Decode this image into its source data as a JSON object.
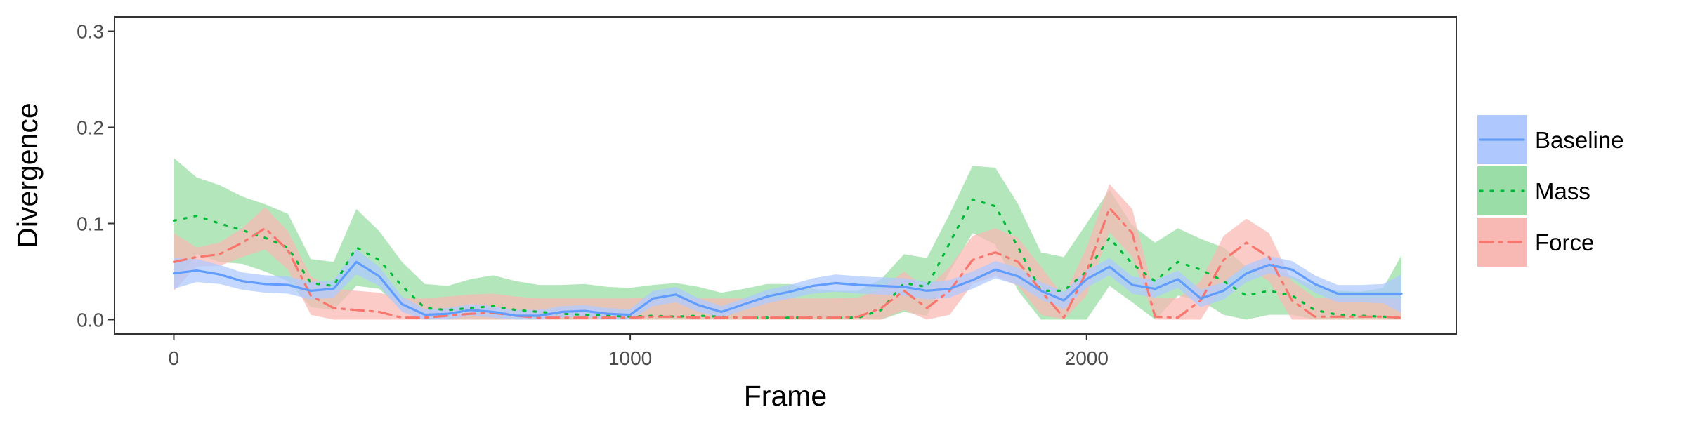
{
  "chart_data": {
    "type": "line",
    "xlabel": "Frame",
    "ylabel": "Divergence",
    "xlim": [
      -130,
      2810
    ],
    "ylim": [
      -0.015,
      0.315
    ],
    "x_ticks": [
      0,
      1000,
      2000
    ],
    "x_tick_labels": [
      "0",
      "1000",
      "2000"
    ],
    "y_ticks": [
      0.0,
      0.1,
      0.2,
      0.3
    ],
    "y_tick_labels": [
      "0.0",
      "0.1",
      "0.2",
      "0.3"
    ],
    "grid": false,
    "legend_position": "right",
    "series": [
      {
        "name": "Baseline",
        "color": "#619CFF",
        "band_color": "#AFC9FF",
        "dash": "",
        "points": [
          [
            0,
            0.048
          ],
          [
            50,
            0.051
          ],
          [
            100,
            0.047
          ],
          [
            150,
            0.04
          ],
          [
            200,
            0.037
          ],
          [
            250,
            0.036
          ],
          [
            300,
            0.03
          ],
          [
            350,
            0.032
          ],
          [
            400,
            0.06
          ],
          [
            450,
            0.045
          ],
          [
            500,
            0.016
          ],
          [
            550,
            0.005
          ],
          [
            600,
            0.006
          ],
          [
            650,
            0.01
          ],
          [
            700,
            0.008
          ],
          [
            750,
            0.004
          ],
          [
            800,
            0.004
          ],
          [
            850,
            0.008
          ],
          [
            900,
            0.009
          ],
          [
            950,
            0.006
          ],
          [
            1000,
            0.005
          ],
          [
            1050,
            0.022
          ],
          [
            1100,
            0.026
          ],
          [
            1150,
            0.015
          ],
          [
            1200,
            0.008
          ],
          [
            1250,
            0.016
          ],
          [
            1300,
            0.024
          ],
          [
            1350,
            0.029
          ],
          [
            1400,
            0.035
          ],
          [
            1450,
            0.038
          ],
          [
            1500,
            0.036
          ],
          [
            1550,
            0.035
          ],
          [
            1600,
            0.034
          ],
          [
            1650,
            0.03
          ],
          [
            1700,
            0.032
          ],
          [
            1750,
            0.041
          ],
          [
            1800,
            0.052
          ],
          [
            1850,
            0.045
          ],
          [
            1900,
            0.03
          ],
          [
            1950,
            0.02
          ],
          [
            2000,
            0.042
          ],
          [
            2050,
            0.055
          ],
          [
            2100,
            0.036
          ],
          [
            2150,
            0.032
          ],
          [
            2200,
            0.042
          ],
          [
            2250,
            0.022
          ],
          [
            2300,
            0.03
          ],
          [
            2350,
            0.048
          ],
          [
            2400,
            0.057
          ],
          [
            2450,
            0.052
          ],
          [
            2500,
            0.037
          ],
          [
            2550,
            0.027
          ],
          [
            2600,
            0.027
          ],
          [
            2650,
            0.027
          ],
          [
            2690,
            0.027
          ]
        ],
        "band_half": [
          0.016,
          0.012,
          0.01,
          0.009,
          0.009,
          0.009,
          0.009,
          0.009,
          0.013,
          0.01,
          0.008,
          0.006,
          0.006,
          0.006,
          0.006,
          0.006,
          0.006,
          0.006,
          0.006,
          0.006,
          0.006,
          0.008,
          0.008,
          0.007,
          0.006,
          0.006,
          0.007,
          0.007,
          0.008,
          0.009,
          0.009,
          0.009,
          0.009,
          0.009,
          0.009,
          0.009,
          0.009,
          0.009,
          0.009,
          0.009,
          0.009,
          0.009,
          0.009,
          0.009,
          0.009,
          0.009,
          0.009,
          0.009,
          0.009,
          0.009,
          0.009,
          0.009,
          0.009,
          0.01,
          0.02
        ]
      },
      {
        "name": "Mass",
        "color": "#00BA38",
        "band_color": "#9BDDA6",
        "dash": "3 12",
        "points": [
          [
            0,
            0.103
          ],
          [
            50,
            0.108
          ],
          [
            100,
            0.1
          ],
          [
            150,
            0.093
          ],
          [
            200,
            0.085
          ],
          [
            250,
            0.075
          ],
          [
            300,
            0.038
          ],
          [
            350,
            0.035
          ],
          [
            400,
            0.075
          ],
          [
            450,
            0.062
          ],
          [
            500,
            0.035
          ],
          [
            550,
            0.012
          ],
          [
            600,
            0.01
          ],
          [
            650,
            0.012
          ],
          [
            700,
            0.014
          ],
          [
            750,
            0.01
          ],
          [
            800,
            0.008
          ],
          [
            850,
            0.006
          ],
          [
            900,
            0.005
          ],
          [
            950,
            0.004
          ],
          [
            1000,
            0.003
          ],
          [
            1050,
            0.004
          ],
          [
            1100,
            0.003
          ],
          [
            1150,
            0.004
          ],
          [
            1200,
            0.003
          ],
          [
            1250,
            0.002
          ],
          [
            1300,
            0.002
          ],
          [
            1350,
            0.002
          ],
          [
            1400,
            0.002
          ],
          [
            1450,
            0.002
          ],
          [
            1500,
            0.002
          ],
          [
            1550,
            0.01
          ],
          [
            1600,
            0.038
          ],
          [
            1650,
            0.034
          ],
          [
            1700,
            0.08
          ],
          [
            1750,
            0.125
          ],
          [
            1800,
            0.118
          ],
          [
            1850,
            0.075
          ],
          [
            1900,
            0.03
          ],
          [
            1950,
            0.03
          ],
          [
            2000,
            0.05
          ],
          [
            2050,
            0.085
          ],
          [
            2100,
            0.058
          ],
          [
            2150,
            0.04
          ],
          [
            2200,
            0.06
          ],
          [
            2250,
            0.052
          ],
          [
            2300,
            0.04
          ],
          [
            2350,
            0.025
          ],
          [
            2400,
            0.03
          ],
          [
            2450,
            0.025
          ],
          [
            2500,
            0.01
          ],
          [
            2550,
            0.005
          ],
          [
            2600,
            0.004
          ],
          [
            2650,
            0.003
          ],
          [
            2690,
            0.002
          ]
        ],
        "band_half": [
          0.065,
          0.04,
          0.04,
          0.035,
          0.035,
          0.035,
          0.025,
          0.025,
          0.04,
          0.03,
          0.025,
          0.025,
          0.025,
          0.03,
          0.032,
          0.03,
          0.028,
          0.03,
          0.032,
          0.03,
          0.03,
          0.032,
          0.035,
          0.03,
          0.025,
          0.03,
          0.035,
          0.035,
          0.03,
          0.028,
          0.028,
          0.032,
          0.03,
          0.03,
          0.03,
          0.035,
          0.04,
          0.045,
          0.04,
          0.035,
          0.05,
          0.05,
          0.04,
          0.04,
          0.035,
          0.032,
          0.035,
          0.03,
          0.025,
          0.02,
          0.025,
          0.025,
          0.025,
          0.03,
          0.065
        ]
      },
      {
        "name": "Force",
        "color": "#F8766D",
        "band_color": "#F8B9B4",
        "dash": "18 9 4 9",
        "points": [
          [
            0,
            0.06
          ],
          [
            50,
            0.065
          ],
          [
            100,
            0.068
          ],
          [
            150,
            0.08
          ],
          [
            200,
            0.095
          ],
          [
            250,
            0.072
          ],
          [
            300,
            0.025
          ],
          [
            350,
            0.012
          ],
          [
            400,
            0.01
          ],
          [
            450,
            0.008
          ],
          [
            500,
            0.002
          ],
          [
            550,
            0.002
          ],
          [
            600,
            0.004
          ],
          [
            650,
            0.006
          ],
          [
            700,
            0.007
          ],
          [
            750,
            0.004
          ],
          [
            800,
            0.002
          ],
          [
            850,
            0.002
          ],
          [
            900,
            0.002
          ],
          [
            950,
            0.002
          ],
          [
            1000,
            0.002
          ],
          [
            1050,
            0.003
          ],
          [
            1100,
            0.003
          ],
          [
            1150,
            0.002
          ],
          [
            1200,
            0.002
          ],
          [
            1250,
            0.002
          ],
          [
            1300,
            0.002
          ],
          [
            1350,
            0.002
          ],
          [
            1400,
            0.002
          ],
          [
            1450,
            0.002
          ],
          [
            1500,
            0.003
          ],
          [
            1550,
            0.012
          ],
          [
            1600,
            0.03
          ],
          [
            1650,
            0.012
          ],
          [
            1700,
            0.03
          ],
          [
            1750,
            0.062
          ],
          [
            1800,
            0.07
          ],
          [
            1850,
            0.06
          ],
          [
            1900,
            0.03
          ],
          [
            1950,
            0.002
          ],
          [
            2000,
            0.05
          ],
          [
            2050,
            0.116
          ],
          [
            2100,
            0.09
          ],
          [
            2150,
            0.003
          ],
          [
            2200,
            0.002
          ],
          [
            2250,
            0.02
          ],
          [
            2300,
            0.062
          ],
          [
            2350,
            0.08
          ],
          [
            2400,
            0.065
          ],
          [
            2450,
            0.02
          ],
          [
            2500,
            0.003
          ],
          [
            2550,
            0.003
          ],
          [
            2600,
            0.003
          ],
          [
            2650,
            0.003
          ],
          [
            2690,
            0.002
          ]
        ],
        "band_half": [
          0.03,
          0.01,
          0.012,
          0.015,
          0.022,
          0.02,
          0.02,
          0.02,
          0.02,
          0.02,
          0.02,
          0.02,
          0.02,
          0.02,
          0.02,
          0.02,
          0.02,
          0.02,
          0.02,
          0.02,
          0.02,
          0.02,
          0.02,
          0.02,
          0.02,
          0.02,
          0.02,
          0.02,
          0.02,
          0.02,
          0.02,
          0.02,
          0.02,
          0.02,
          0.025,
          0.025,
          0.025,
          0.025,
          0.025,
          0.022,
          0.025,
          0.025,
          0.025,
          0.02,
          0.02,
          0.02,
          0.025,
          0.025,
          0.025,
          0.02,
          0.02,
          0.02,
          0.02,
          0.02,
          0.02
        ]
      }
    ]
  }
}
